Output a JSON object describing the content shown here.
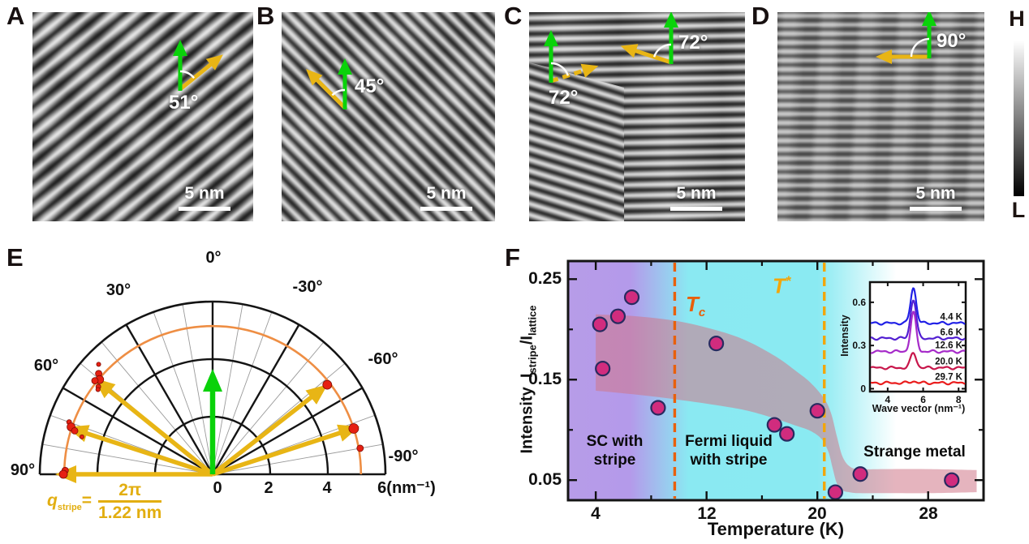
{
  "colors": {
    "green": "#0ad20a",
    "yellow": "#e8b515",
    "orange_arc": "#ee8e44",
    "red_dot": "#e62012",
    "tc": "#e8600c",
    "tstar": "#f2a60a",
    "point_fill": "#d12c7e",
    "point_stroke": "#282a60",
    "band": "rgba(208,118,136,0.55)",
    "purple": "#b79ce8",
    "cyan": "#8aeaf2"
  },
  "figure": {
    "colorbar": {
      "high": "H",
      "low": "L"
    },
    "panels_top": [
      {
        "label": "A",
        "angle1": "51°",
        "scale": "5 nm"
      },
      {
        "label": "B",
        "angle1": "45°",
        "scale": "5 nm"
      },
      {
        "label": "C",
        "angle1": "72°",
        "angle2": "72°",
        "scale": "5 nm"
      },
      {
        "label": "D",
        "angle1": "90°",
        "scale": "5 nm"
      }
    ],
    "panelE": {
      "label": "E",
      "angles": {
        "a0": "0°",
        "a30": "30°",
        "a60": "60°",
        "a90": "90°",
        "am30": "-30°",
        "am60": "-60°",
        "am90": "-90°"
      },
      "radial": {
        "r0": "0",
        "r2": "2",
        "r4": "4",
        "r6": "6(nm⁻¹)"
      },
      "formula": {
        "q": "q",
        "sub": "stripe",
        "eq": "=",
        "num": "2π",
        "den": "1.22 nm"
      }
    },
    "panelF": {
      "label": "F",
      "ylabel_prefix": "Intensity",
      "ylabel": {
        "i1": "I",
        "s1": "stripe",
        "slash": "/",
        "i2": "I",
        "s2": "lattice"
      },
      "yticks": [
        "0.25",
        "0.15",
        "0.05"
      ],
      "xticks": [
        "4",
        "12",
        "20",
        "28"
      ],
      "xlabel": "Temperature (K)",
      "tc": {
        "t": "T",
        "sub": "c"
      },
      "tstar": {
        "t": "T",
        "sup": "*"
      },
      "regions": {
        "sc_line1": "SC with",
        "sc_line2": "stripe",
        "fl_line1": "Fermi liquid",
        "fl_line2": "with stripe",
        "sm": "Strange metal"
      },
      "inset": {
        "ylabel": "Intensity",
        "xlabel": "Wave vector (nm⁻¹)"
      }
    }
  },
  "chart_data": [
    {
      "id": "E",
      "type": "scatter",
      "coordinate": "polar-half",
      "title": "Stripe wave-vector orientations",
      "radial_range": [
        0,
        6
      ],
      "radial_unit": "nm⁻¹",
      "angle_ticks_deg": [
        -90,
        -60,
        -30,
        0,
        30,
        60,
        90
      ],
      "grid": {
        "thin_angle_step_deg": 10,
        "thick_radii": [
          2,
          4,
          6
        ]
      },
      "reference_circle": {
        "r": 5.15,
        "label": "q_stripe = 2π/1.22 nm"
      },
      "lattice_arrow": {
        "angle_deg": 0,
        "r": 3.6
      },
      "stripe_arrows": [
        {
          "angle_deg": 51,
          "r": 5.2
        },
        {
          "angle_deg": 72,
          "r": 5.2
        },
        {
          "angle_deg": 90,
          "r": 5.35
        },
        {
          "angle_deg": -52,
          "r": 4.95
        },
        {
          "angle_deg": -72,
          "r": 5.25
        }
      ],
      "points": [
        [
          46,
          5.5,
          2.6
        ],
        [
          48.5,
          5.28,
          4
        ],
        [
          50,
          5.12,
          5
        ],
        [
          51.5,
          5.22,
          4
        ],
        [
          52.5,
          5.0,
          3
        ],
        [
          53.5,
          4.95,
          2.6
        ],
        [
          70,
          5.3,
          3
        ],
        [
          71.5,
          5.18,
          5
        ],
        [
          72.5,
          5.02,
          4
        ],
        [
          74,
          4.72,
          2.6
        ],
        [
          88.5,
          5.12,
          4
        ],
        [
          90,
          5.18,
          5
        ],
        [
          -52,
          5.05,
          5.5
        ],
        [
          -72,
          5.15,
          6
        ],
        [
          -80,
          5.2,
          4
        ]
      ]
    },
    {
      "id": "F",
      "type": "scatter",
      "xlabel": "Temperature (K)",
      "ylabel": "Intensity I_stripe/I_lattice",
      "xlim": [
        2,
        32
      ],
      "ylim": [
        0.03,
        0.268
      ],
      "xticks": [
        4,
        12,
        20,
        28
      ],
      "yticks": [
        0.05,
        0.15,
        0.25
      ],
      "points": [
        [
          4.3,
          0.205
        ],
        [
          4.5,
          0.161
        ],
        [
          5.6,
          0.213
        ],
        [
          6.6,
          0.232
        ],
        [
          8.5,
          0.122
        ],
        [
          12.7,
          0.186
        ],
        [
          16.9,
          0.105
        ],
        [
          17.8,
          0.096
        ],
        [
          20.0,
          0.119
        ],
        [
          21.3,
          0.038
        ],
        [
          23.1,
          0.056
        ],
        [
          29.7,
          0.05
        ]
      ],
      "tc_line_K": 9.7,
      "tstar_line_K": 20.5,
      "regions": [
        {
          "label": "SC with stripe",
          "x_range": [
            2,
            9.7
          ]
        },
        {
          "label": "Fermi liquid with stripe",
          "x_range": [
            9.7,
            20.5
          ]
        },
        {
          "label": "Strange metal",
          "x_range": [
            20.5,
            32
          ]
        }
      ],
      "band_upper": [
        [
          4,
          0.215
        ],
        [
          7,
          0.213
        ],
        [
          10,
          0.208
        ],
        [
          13,
          0.198
        ],
        [
          15,
          0.188
        ],
        [
          17,
          0.173
        ],
        [
          18.5,
          0.158
        ],
        [
          19.5,
          0.147
        ],
        [
          20.5,
          0.131
        ],
        [
          21,
          0.116
        ],
        [
          21.4,
          0.094
        ],
        [
          21.8,
          0.074
        ],
        [
          22.3,
          0.064
        ],
        [
          23,
          0.061
        ],
        [
          25,
          0.061
        ],
        [
          28,
          0.061
        ],
        [
          31.5,
          0.06
        ]
      ],
      "band_lower": [
        [
          4,
          0.139
        ],
        [
          7,
          0.135
        ],
        [
          10,
          0.13
        ],
        [
          13,
          0.124
        ],
        [
          15,
          0.119
        ],
        [
          17,
          0.111
        ],
        [
          18.5,
          0.104
        ],
        [
          19.5,
          0.099
        ],
        [
          20.3,
          0.091
        ],
        [
          20.8,
          0.078
        ],
        [
          21.1,
          0.062
        ],
        [
          21.4,
          0.047
        ],
        [
          21.8,
          0.04
        ],
        [
          22.3,
          0.038
        ],
        [
          23,
          0.037
        ],
        [
          25,
          0.037
        ],
        [
          28,
          0.037
        ],
        [
          31.5,
          0.038
        ]
      ]
    },
    {
      "id": "F-inset",
      "type": "line",
      "xlabel": "Wave vector (nm⁻¹)",
      "ylabel": "Intensity",
      "xlim": [
        3.0,
        8.4
      ],
      "ylim": [
        -0.02,
        0.74
      ],
      "xticks": [
        4,
        6,
        8
      ],
      "yticks": [
        0,
        0.3,
        0.6
      ],
      "peak_center": 5.45,
      "peak_sigma": 0.16,
      "series": [
        {
          "label": "4.4 K",
          "color": "#2020e6",
          "baseline": 0.455,
          "peak_height": 0.245
        },
        {
          "label": "6.6 K",
          "color": "#5320d2",
          "baseline": 0.35,
          "peak_height": 0.27
        },
        {
          "label": "12.6 K",
          "color": "#a62bc9",
          "baseline": 0.258,
          "peak_height": 0.27
        },
        {
          "label": "20.0 K",
          "color": "#c8164b",
          "baseline": 0.145,
          "peak_height": 0.105
        },
        {
          "label": "29.7 K",
          "color": "#ea1d1d",
          "baseline": 0.04,
          "peak_height": 0.012
        }
      ]
    }
  ]
}
